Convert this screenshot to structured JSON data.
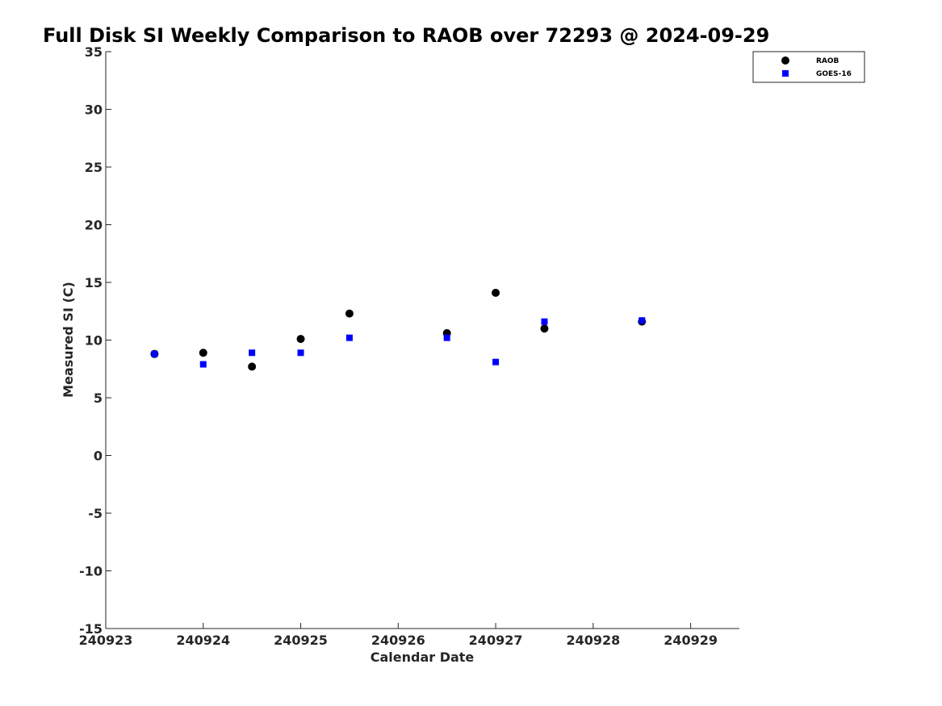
{
  "chart_data": {
    "type": "scatter",
    "title": "Full Disk SI Weekly Comparison to RAOB over 72293 @ 2024-09-29",
    "xlabel": "Calendar Date",
    "ylabel": "Measured SI (C)",
    "xlim": [
      240923,
      240929.5
    ],
    "ylim": [
      -15,
      35
    ],
    "x_ticks": [
      240923,
      240924,
      240925,
      240926,
      240927,
      240928,
      240929
    ],
    "x_tick_labels": [
      "240923",
      "240924",
      "240925",
      "240926",
      "240927",
      "240928",
      "240929"
    ],
    "y_ticks": [
      35,
      30,
      25,
      20,
      15,
      10,
      5,
      0,
      -5,
      -10,
      -15
    ],
    "y_tick_labels": [
      "35",
      "30",
      "25",
      "20",
      "15",
      "10",
      "5",
      "0",
      "-5",
      "-10",
      "-15"
    ],
    "grid": false,
    "legend_position": "top-right",
    "series": [
      {
        "name": "RAOB",
        "marker": "circle",
        "color": "#000000",
        "points": [
          {
            "x": 240923.5,
            "y": 8.8
          },
          {
            "x": 240924.0,
            "y": 8.9
          },
          {
            "x": 240924.5,
            "y": 7.7
          },
          {
            "x": 240925.0,
            "y": 10.1
          },
          {
            "x": 240925.5,
            "y": 12.3
          },
          {
            "x": 240926.5,
            "y": 10.6
          },
          {
            "x": 240927.0,
            "y": 14.1
          },
          {
            "x": 240927.5,
            "y": 11.0
          },
          {
            "x": 240928.5,
            "y": 11.6
          }
        ]
      },
      {
        "name": "GOES-16",
        "marker": "square",
        "color": "#0000ff",
        "points": [
          {
            "x": 240923.5,
            "y": 8.8
          },
          {
            "x": 240924.0,
            "y": 7.9
          },
          {
            "x": 240924.5,
            "y": 8.9
          },
          {
            "x": 240925.0,
            "y": 8.9
          },
          {
            "x": 240925.5,
            "y": 10.2
          },
          {
            "x": 240926.5,
            "y": 10.2
          },
          {
            "x": 240927.0,
            "y": 8.1
          },
          {
            "x": 240927.5,
            "y": 11.6
          },
          {
            "x": 240928.5,
            "y": 11.7
          }
        ]
      }
    ]
  }
}
